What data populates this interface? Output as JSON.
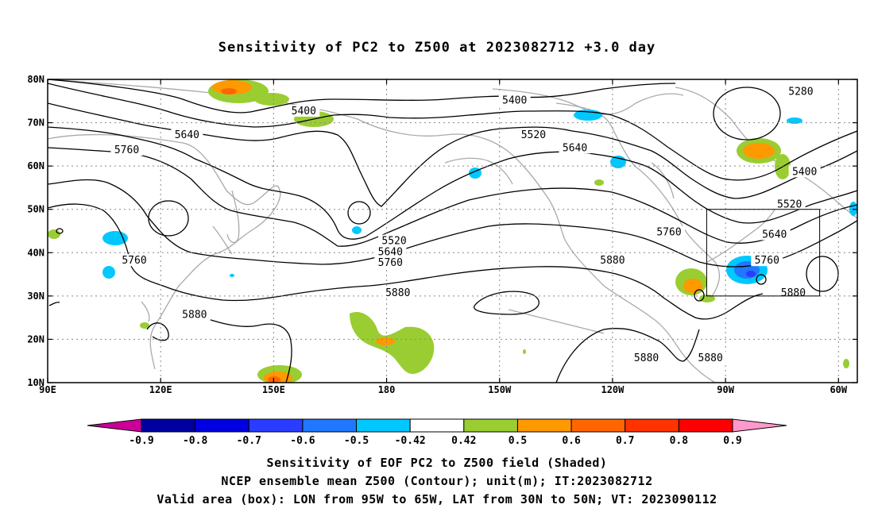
{
  "title": "Sensitivity of PC2 to Z500 at 2023082712 +3.0 day",
  "map": {
    "lon_range": [
      90,
      305
    ],
    "lat_range": [
      10,
      80
    ],
    "lat_ticks": [
      {
        "value": 10,
        "label": "10N"
      },
      {
        "value": 20,
        "label": "20N"
      },
      {
        "value": 30,
        "label": "30N"
      },
      {
        "value": 40,
        "label": "40N"
      },
      {
        "value": 50,
        "label": "50N"
      },
      {
        "value": 60,
        "label": "60N"
      },
      {
        "value": 70,
        "label": "70N"
      },
      {
        "value": 80,
        "label": "80N"
      }
    ],
    "lon_ticks": [
      {
        "value": 90,
        "label": "90E"
      },
      {
        "value": 120,
        "label": "120E"
      },
      {
        "value": 150,
        "label": "150E"
      },
      {
        "value": 180,
        "label": "180"
      },
      {
        "value": 210,
        "label": "150W"
      },
      {
        "value": 240,
        "label": "120W"
      },
      {
        "value": 270,
        "label": "90W"
      },
      {
        "value": 300,
        "label": "60W"
      }
    ],
    "valid_box": {
      "lon_min": 265,
      "lon_max": 295,
      "lat_min": 30,
      "lat_max": 50
    },
    "contour_labels": [
      {
        "text": "5280",
        "lon": 290,
        "lat": 77
      },
      {
        "text": "5400",
        "lon": 158,
        "lat": 72.5
      },
      {
        "text": "5400",
        "lon": 214,
        "lat": 75
      },
      {
        "text": "5400",
        "lon": 291,
        "lat": 58.5
      },
      {
        "text": "5520",
        "lon": 219,
        "lat": 67
      },
      {
        "text": "5520",
        "lon": 287,
        "lat": 51
      },
      {
        "text": "5520",
        "lon": 182,
        "lat": 42.5
      },
      {
        "text": "5640",
        "lon": 127,
        "lat": 67
      },
      {
        "text": "5640",
        "lon": 230,
        "lat": 64
      },
      {
        "text": "5640",
        "lon": 283,
        "lat": 44
      },
      {
        "text": "5640",
        "lon": 181,
        "lat": 40
      },
      {
        "text": "5760",
        "lon": 111,
        "lat": 63.5
      },
      {
        "text": "5760",
        "lon": 181,
        "lat": 37.5
      },
      {
        "text": "5760",
        "lon": 255,
        "lat": 44.5
      },
      {
        "text": "5760",
        "lon": 113,
        "lat": 38
      },
      {
        "text": "5760",
        "lon": 281,
        "lat": 38
      },
      {
        "text": "5880",
        "lon": 183,
        "lat": 30.5
      },
      {
        "text": "5880",
        "lon": 240,
        "lat": 38
      },
      {
        "text": "5880",
        "lon": 129,
        "lat": 25.5
      },
      {
        "text": "5880",
        "lon": 288,
        "lat": 30.5
      },
      {
        "text": "5880",
        "lon": 249,
        "lat": 15.5
      },
      {
        "text": "5880",
        "lon": 266,
        "lat": 15.5
      }
    ]
  },
  "colorbar": {
    "ticks": [
      "-0.9",
      "-0.8",
      "-0.7",
      "-0.6",
      "-0.5",
      "-0.42",
      "0.42",
      "0.5",
      "0.6",
      "0.7",
      "0.8",
      "0.9"
    ],
    "colors": [
      "#0000a0",
      "#0000e0",
      "#2a3cff",
      "#1f78ff",
      "#00c8ff",
      "#ffffff",
      "#9acd32",
      "#ff9900",
      "#ff6600",
      "#ff3300",
      "#ff0000"
    ],
    "low_end_color": "#cc0099",
    "high_end_color": "#ff99cc"
  },
  "caption": {
    "line1": "Sensitivity of EOF PC2 to Z500 field (Shaded)",
    "line2": "NCEP ensemble mean Z500 (Contour); unit(m); IT:2023082712",
    "line3": "Valid area (box): LON from 95W to 65W, LAT from 30N to 50N; VT: 2023090112"
  }
}
